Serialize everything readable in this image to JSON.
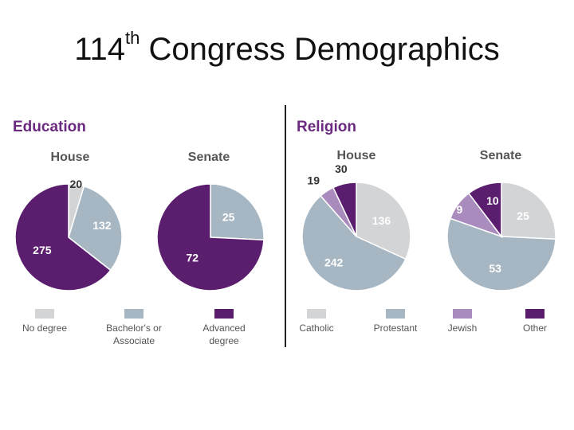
{
  "slide": {
    "title_prefix": "114",
    "title_sup": "th",
    "title_suffix": " Congress Demographics"
  },
  "colors": {
    "light_gray": "#d3d4d6",
    "blue_gray": "#a6b7c3",
    "lavender": "#a98bbd",
    "purple": "#5b1e6e",
    "section_title": "#6b2a7f"
  },
  "chart_data": [
    {
      "type": "pie",
      "title": "Education",
      "categories": [
        "No degree",
        "Bachelor's or Associate",
        "Advanced degree"
      ],
      "legend_lines": [
        [
          "No degree"
        ],
        [
          "Bachelor's or",
          "Associate"
        ],
        [
          "Advanced",
          "degree"
        ]
      ],
      "series": [
        {
          "name": "House",
          "values": [
            20,
            132,
            275
          ]
        },
        {
          "name": "Senate",
          "values": [
            0,
            25,
            72
          ]
        }
      ]
    },
    {
      "type": "pie",
      "title": "Religion",
      "categories": [
        "Catholic",
        "Protestant",
        "Jewish",
        "Other"
      ],
      "legend_lines": [
        [
          "Catholic"
        ],
        [
          "Protestant"
        ],
        [
          "Jewish"
        ],
        [
          "Other"
        ]
      ],
      "series": [
        {
          "name": "House",
          "values": [
            136,
            242,
            19,
            30
          ]
        },
        {
          "name": "Senate",
          "values": [
            25,
            53,
            9,
            10
          ]
        }
      ]
    }
  ]
}
